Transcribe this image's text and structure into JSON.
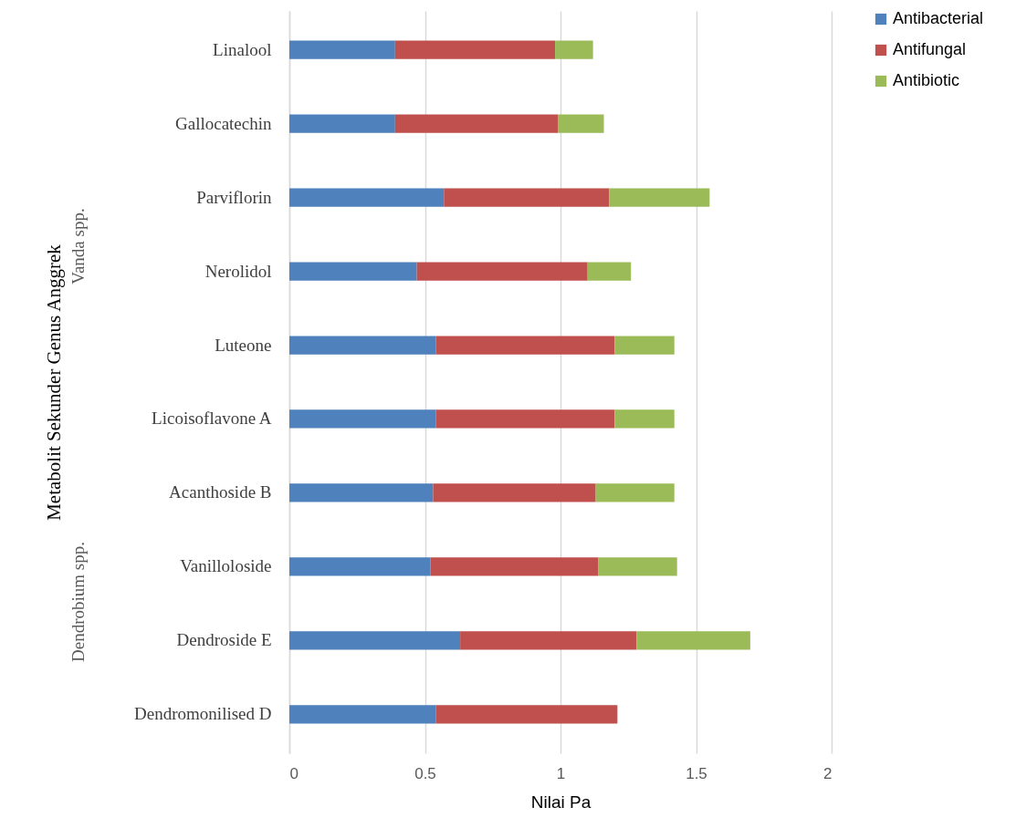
{
  "chart_data": {
    "type": "bar",
    "orientation": "horizontal",
    "stacked": true,
    "xlabel": "Nilai Pa",
    "ylabel": "Metabolit Sekunder Genus Anggrek",
    "categories": [
      "Linalool",
      "Gallocatechin",
      "Parviflorin",
      "Nerolidol",
      "Luteone",
      "Licoisoflavone A",
      "Acanthoside B",
      "Vanilloloside",
      "Dendroside E",
      "Dendromonilised D"
    ],
    "series": [
      {
        "name": "Antibacterial",
        "color": "#4f81bd",
        "values": [
          0.39,
          0.39,
          0.57,
          0.47,
          0.54,
          0.54,
          0.53,
          0.52,
          0.63,
          0.54
        ]
      },
      {
        "name": "Antifungal",
        "color": "#c0504d",
        "values": [
          0.59,
          0.6,
          0.61,
          0.63,
          0.66,
          0.66,
          0.6,
          0.62,
          0.65,
          0.67
        ]
      },
      {
        "name": "Antibiotic",
        "color": "#9bbb59",
        "values": [
          0.14,
          0.17,
          0.37,
          0.16,
          0.22,
          0.22,
          0.29,
          0.29,
          0.42,
          null
        ]
      }
    ],
    "xlim": [
      0,
      2
    ],
    "xticks": [
      0,
      0.5,
      1,
      1.5,
      2
    ],
    "grid": "x",
    "legend": "right",
    "annotations": [
      "Vanda spp.",
      "Dendrobium spp."
    ]
  }
}
